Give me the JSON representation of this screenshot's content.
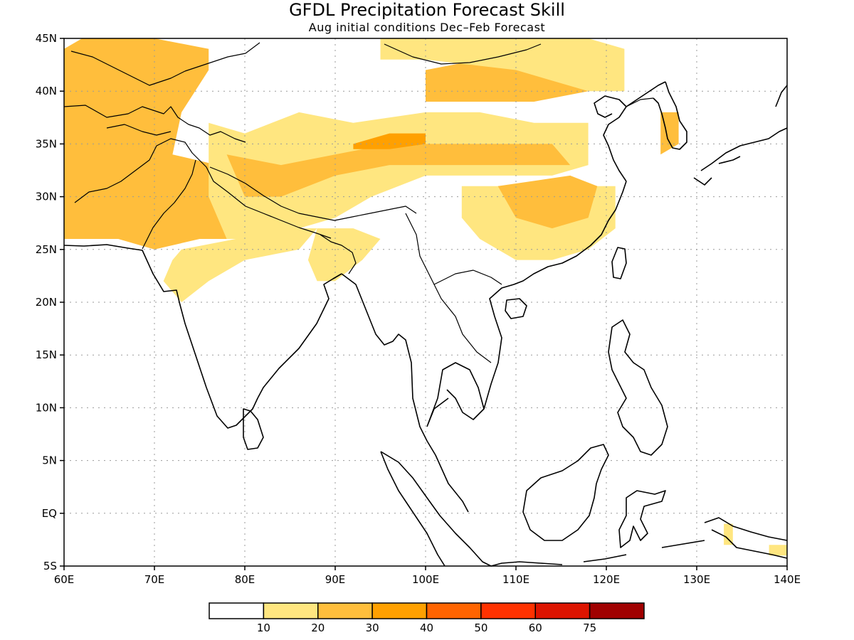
{
  "title": "GFDL Precipitation Forecast Skill",
  "subtitle": "Aug initial conditions  Dec–Feb Forecast",
  "chart_data": {
    "type": "heatmap",
    "title": "GFDL Precipitation Forecast Skill",
    "subtitle": "Aug initial conditions  Dec–Feb Forecast",
    "lon_range": [
      60,
      140
    ],
    "lat_range": [
      -5,
      45
    ],
    "grid": true,
    "x_ticks": [
      "60E",
      "70E",
      "80E",
      "90E",
      "100E",
      "110E",
      "120E",
      "130E",
      "140E"
    ],
    "y_ticks": [
      "45N",
      "40N",
      "35N",
      "30N",
      "25N",
      "20N",
      "15N",
      "10N",
      "5N",
      "EQ",
      "5S"
    ],
    "colorbar": {
      "placement": "bottom",
      "levels": [
        "10",
        "20",
        "30",
        "40",
        "50",
        "60",
        "75"
      ],
      "colors": [
        "#ffffff",
        "#ffe680",
        "#ffbe3c",
        "#ffa000",
        "#ff6400",
        "#ff3200",
        "#dc1400",
        "#a00000"
      ]
    },
    "skill_regions": [
      {
        "name": "central-asia",
        "level": 2,
        "lonlat": [
          [
            60,
            44
          ],
          [
            62,
            45
          ],
          [
            70,
            45
          ],
          [
            76,
            44
          ],
          [
            76,
            42
          ],
          [
            73,
            38
          ],
          [
            72,
            34
          ],
          [
            77,
            33
          ],
          [
            79,
            30
          ],
          [
            82,
            28
          ],
          [
            80,
            26
          ],
          [
            75,
            26
          ],
          [
            70,
            25
          ],
          [
            66,
            26
          ],
          [
            60,
            26
          ]
        ]
      },
      {
        "name": "tibet-band",
        "level": 1,
        "lonlat": [
          [
            76,
            37
          ],
          [
            80,
            36
          ],
          [
            86,
            38
          ],
          [
            92,
            37
          ],
          [
            100,
            38
          ],
          [
            106,
            38
          ],
          [
            112,
            37
          ],
          [
            118,
            37
          ],
          [
            118,
            33
          ],
          [
            114,
            32
          ],
          [
            108,
            32
          ],
          [
            100,
            32
          ],
          [
            94,
            30
          ],
          [
            90,
            28
          ],
          [
            86,
            27
          ],
          [
            82,
            26
          ],
          [
            78,
            26
          ],
          [
            76,
            30
          ]
        ]
      },
      {
        "name": "tibet-core",
        "level": 2,
        "lonlat": [
          [
            78,
            34
          ],
          [
            84,
            33
          ],
          [
            90,
            34
          ],
          [
            96,
            35
          ],
          [
            102,
            35
          ],
          [
            108,
            35
          ],
          [
            114,
            35
          ],
          [
            116,
            33
          ],
          [
            110,
            33
          ],
          [
            102,
            33
          ],
          [
            96,
            33
          ],
          [
            90,
            32
          ],
          [
            84,
            30
          ],
          [
            80,
            30
          ]
        ]
      },
      {
        "name": "tibet-peak",
        "level": 3,
        "lonlat": [
          [
            92,
            35
          ],
          [
            96,
            36
          ],
          [
            100,
            36
          ],
          [
            100,
            35
          ],
          [
            96,
            34.5
          ],
          [
            92,
            34.5
          ]
        ]
      },
      {
        "name": "south-china",
        "level": 1,
        "lonlat": [
          [
            104,
            31
          ],
          [
            108,
            31
          ],
          [
            114,
            31
          ],
          [
            118,
            31
          ],
          [
            121,
            31
          ],
          [
            121,
            27
          ],
          [
            118,
            25
          ],
          [
            114,
            24
          ],
          [
            110,
            24
          ],
          [
            106,
            26
          ],
          [
            104,
            28
          ]
        ]
      },
      {
        "name": "south-china-core",
        "level": 2,
        "lonlat": [
          [
            108,
            31
          ],
          [
            116,
            32
          ],
          [
            119,
            31
          ],
          [
            118,
            28
          ],
          [
            114,
            27
          ],
          [
            110,
            28
          ]
        ]
      },
      {
        "name": "north-china",
        "level": 2,
        "lonlat": [
          [
            100,
            42
          ],
          [
            106,
            43
          ],
          [
            112,
            44
          ],
          [
            118,
            43
          ],
          [
            118,
            40
          ],
          [
            112,
            39
          ],
          [
            106,
            39
          ],
          [
            100,
            39
          ]
        ]
      },
      {
        "name": "mongolia",
        "level": 1,
        "lonlat": [
          [
            95,
            45
          ],
          [
            112,
            45
          ],
          [
            118,
            45
          ],
          [
            122,
            44
          ],
          [
            122,
            40
          ],
          [
            118,
            40
          ],
          [
            110,
            42
          ],
          [
            100,
            43
          ],
          [
            95,
            43
          ]
        ]
      },
      {
        "name": "bengal",
        "level": 1,
        "lonlat": [
          [
            88,
            27
          ],
          [
            92,
            27
          ],
          [
            95,
            26
          ],
          [
            93,
            24
          ],
          [
            90,
            22
          ],
          [
            88,
            22
          ],
          [
            87,
            24
          ]
        ]
      },
      {
        "name": "india-strip",
        "level": 1,
        "lonlat": [
          [
            73,
            25
          ],
          [
            79,
            26
          ],
          [
            84,
            27
          ],
          [
            88,
            27
          ],
          [
            86,
            25
          ],
          [
            80,
            24
          ],
          [
            76,
            22
          ],
          [
            73,
            20
          ],
          [
            71,
            22
          ],
          [
            72,
            24
          ]
        ]
      },
      {
        "name": "korea-strip",
        "level": 2,
        "lonlat": [
          [
            126,
            38
          ],
          [
            128,
            38
          ],
          [
            128,
            35
          ],
          [
            126,
            34
          ]
        ]
      },
      {
        "name": "new-guinea",
        "level": 1,
        "lonlat": [
          [
            133,
            -1
          ],
          [
            134,
            -1
          ],
          [
            134,
            -3
          ],
          [
            133,
            -3
          ]
        ]
      },
      {
        "name": "se-corner",
        "level": 1,
        "lonlat": [
          [
            138,
            -3
          ],
          [
            140,
            -3
          ],
          [
            140,
            -4
          ],
          [
            138,
            -4
          ]
        ]
      }
    ]
  }
}
